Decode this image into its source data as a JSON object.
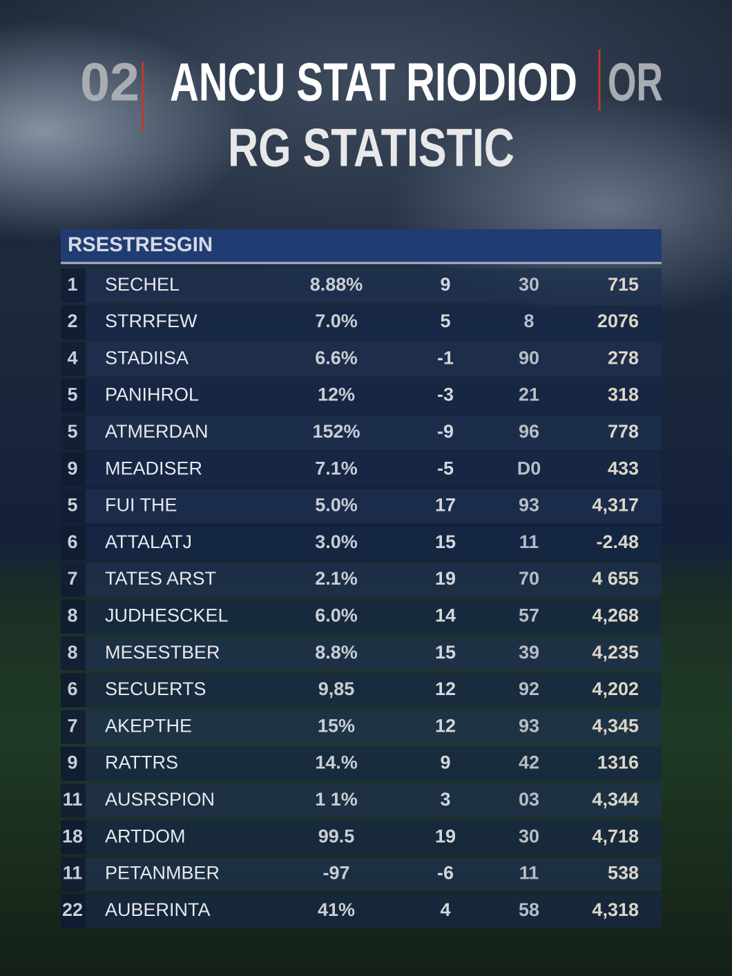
{
  "title": {
    "prefix": "02",
    "main": "ANCU STAT RIODIOD",
    "suffix": "OR",
    "line2": "RG STATISTIC"
  },
  "table": {
    "header": "RSESTRESGIN",
    "rows": [
      [
        "1",
        "SECHEL",
        "8.88%",
        "9",
        "30",
        "715"
      ],
      [
        "2",
        "STRRFEW",
        "7.0%",
        "5",
        "8",
        "2076"
      ],
      [
        "4",
        "STADIISA",
        "6.6%",
        "-1",
        "90",
        "278"
      ],
      [
        "5",
        "PANIHROL",
        "12%",
        "-3",
        "21",
        "318"
      ],
      [
        "5",
        "ATMERDAN",
        "152%",
        "-9",
        "96",
        "778"
      ],
      [
        "9",
        "MEADISER",
        "7.1%",
        "-5",
        "D0",
        "433"
      ],
      [
        "5",
        "FUI THE",
        "5.0%",
        "17",
        "93",
        "4,317"
      ],
      [
        "6",
        "ATTALATJ",
        "3.0%",
        "15",
        "11",
        "-2.48"
      ],
      [
        "7",
        "TATES ARST",
        "2.1%",
        "19",
        "70",
        "4 655"
      ],
      [
        "8",
        "JUDHESCKEL",
        "6.0%",
        "14",
        "57",
        "4,268"
      ],
      [
        "8",
        "MESESTBER",
        "8.8%",
        "15",
        "39",
        "4,235"
      ],
      [
        "6",
        "SECUERTS",
        "9,85",
        "12",
        "92",
        "4,202"
      ],
      [
        "7",
        "AKEPTHE",
        "15%",
        "12",
        "93",
        "4,345"
      ],
      [
        "9",
        "RATTRS",
        "14.%",
        "9",
        "42",
        "1316"
      ],
      [
        "11",
        "AUSRSPION",
        "1 1%",
        "3",
        "03",
        "4,344"
      ],
      [
        "18",
        "ARTDOM",
        "99.5",
        "19",
        "30",
        "4,718"
      ],
      [
        "11",
        "PETANMBER",
        "-97",
        "-6",
        "11",
        "538"
      ],
      [
        "22",
        "AUBERINTA",
        "41%",
        "4",
        "58",
        "4,318"
      ]
    ]
  }
}
